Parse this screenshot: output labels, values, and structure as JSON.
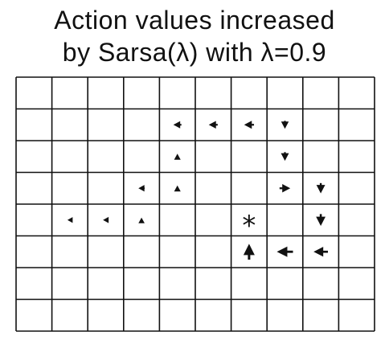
{
  "figure": {
    "title_line1": "Action values increased",
    "title_line2": "by Sarsa(λ) with λ=0.9",
    "goal_marker": "*"
  },
  "gridworld": {
    "cols": 10,
    "rows": 8,
    "goal": [
      6,
      4
    ],
    "arrows": [
      {
        "col": 1,
        "row": 4,
        "dir": "left",
        "strength": 0.25
      },
      {
        "col": 2,
        "row": 4,
        "dir": "left",
        "strength": 0.3
      },
      {
        "col": 3,
        "row": 4,
        "dir": "up",
        "strength": 0.3
      },
      {
        "col": 3,
        "row": 3,
        "dir": "left",
        "strength": 0.35
      },
      {
        "col": 4,
        "row": 3,
        "dir": "up",
        "strength": 0.35
      },
      {
        "col": 4,
        "row": 2,
        "dir": "up",
        "strength": 0.35
      },
      {
        "col": 4,
        "row": 1,
        "dir": "left",
        "strength": 0.45
      },
      {
        "col": 5,
        "row": 1,
        "dir": "left",
        "strength": 0.5
      },
      {
        "col": 6,
        "row": 1,
        "dir": "left",
        "strength": 0.55
      },
      {
        "col": 7,
        "row": 1,
        "dir": "down",
        "strength": 0.5
      },
      {
        "col": 7,
        "row": 2,
        "dir": "down",
        "strength": 0.55
      },
      {
        "col": 7,
        "row": 3,
        "dir": "right",
        "strength": 0.6
      },
      {
        "col": 8,
        "row": 3,
        "dir": "down",
        "strength": 0.65
      },
      {
        "col": 8,
        "row": 4,
        "dir": "down",
        "strength": 0.75
      },
      {
        "col": 8,
        "row": 5,
        "dir": "left",
        "strength": 0.8
      },
      {
        "col": 7,
        "row": 5,
        "dir": "left",
        "strength": 0.9
      },
      {
        "col": 6,
        "row": 5,
        "dir": "up",
        "strength": 1.0
      }
    ]
  }
}
